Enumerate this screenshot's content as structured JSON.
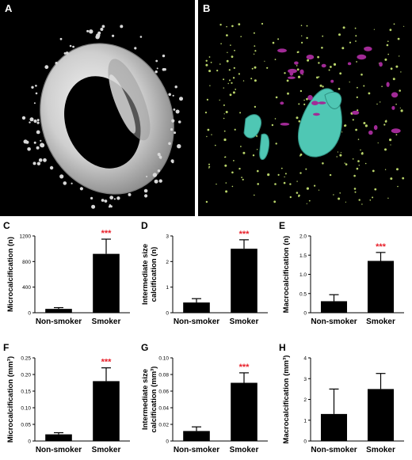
{
  "figure": {
    "panel_a_letter": "A",
    "panel_b_letter": "B"
  },
  "colors": {
    "rendering_a": "#d9d9d9",
    "rendering_b_cyan": "#4fc7b4",
    "rendering_b_magenta": "#a12a96",
    "rendering_b_green": "#b9d46a",
    "bar": "#000000",
    "significance": "#e8202a"
  },
  "chart_data": [
    {
      "panel": "C",
      "type": "bar",
      "ylabel": "Microcalcification (n)",
      "categories": [
        "Non-smoker",
        "Smoker"
      ],
      "values": [
        60,
        920
      ],
      "errors": [
        20,
        230
      ],
      "ylim": [
        0,
        1200
      ],
      "yticks": [
        "0",
        "400",
        "800",
        "1200"
      ],
      "annotation": "***"
    },
    {
      "panel": "D",
      "type": "bar",
      "ylabel_line1": "Intermediate size",
      "ylabel_line2": "calcification (n)",
      "categories": [
        "Non-smoker",
        "Smoker"
      ],
      "values": [
        0.4,
        2.5
      ],
      "errors": [
        0.15,
        0.35
      ],
      "ylim": [
        0,
        3
      ],
      "yticks": [
        "0",
        "1",
        "2",
        "3"
      ],
      "annotation": "***"
    },
    {
      "panel": "E",
      "type": "bar",
      "ylabel": "Macrocalcification (n)",
      "categories": [
        "Non-smoker",
        "Smoker"
      ],
      "values": [
        0.3,
        1.35
      ],
      "errors": [
        0.17,
        0.22
      ],
      "ylim": [
        0,
        2
      ],
      "yticks": [
        "0",
        "0.5",
        "1.0",
        "1.5",
        "2.0"
      ],
      "annotation": "***"
    },
    {
      "panel": "F",
      "type": "bar",
      "ylabel": "Microcalcification (mm³)",
      "categories": [
        "Non-smoker",
        "Smoker"
      ],
      "values": [
        0.02,
        0.18
      ],
      "errors": [
        0.005,
        0.04
      ],
      "ylim": [
        0,
        0.25
      ],
      "yticks": [
        "0",
        "0.05",
        "0.10",
        "0.15",
        "0.20",
        "0.25"
      ],
      "annotation": "***"
    },
    {
      "panel": "G",
      "type": "bar",
      "ylabel_line1": "Intermediate size",
      "ylabel_line2": "calcification (mm³)",
      "categories": [
        "Non-smoker",
        "Smoker"
      ],
      "values": [
        0.012,
        0.07
      ],
      "errors": [
        0.005,
        0.012
      ],
      "ylim": [
        0,
        0.1
      ],
      "yticks": [
        "0",
        "0.02",
        "0.04",
        "0.06",
        "0.08",
        "0.10"
      ],
      "annotation": "***"
    },
    {
      "panel": "H",
      "type": "bar",
      "ylabel": "Macrocalcification (mm³)",
      "categories": [
        "Non-smoker",
        "Smoker"
      ],
      "values": [
        1.3,
        2.5
      ],
      "errors": [
        1.2,
        0.75
      ],
      "ylim": [
        0,
        4
      ],
      "yticks": [
        "0",
        "1",
        "2",
        "3",
        "4"
      ],
      "annotation": ""
    }
  ]
}
